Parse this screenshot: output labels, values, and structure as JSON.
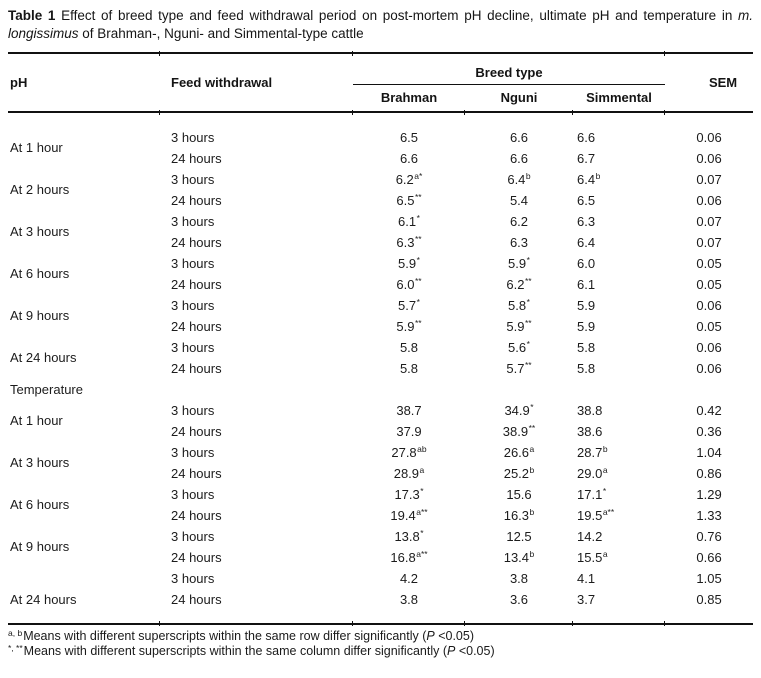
{
  "title": {
    "label_bold": "Table 1",
    "text_after_label": " Effect of breed type and feed withdrawal period on post-mortem pH decline, ultimate pH and temperature in ",
    "italic": "m. longissimus",
    "text_end": " of Brahman-, Nguni- and Simmental-type cattle"
  },
  "header": {
    "ph": "pH",
    "feed_withdrawal": "Feed withdrawal",
    "breed_type": "Breed type",
    "breeds": [
      "Brahman",
      "Nguni",
      "Simmental"
    ],
    "sem": "SEM"
  },
  "body": {
    "sections": [
      {
        "section_label": null,
        "groups": [
          {
            "label": "At 1 hour",
            "rows": [
              [
                "3 hours",
                "6.5",
                "6.6",
                "6.6",
                "0.06"
              ],
              [
                "24 hours",
                "6.6",
                "6.6",
                "6.7",
                "0.06"
              ]
            ]
          },
          {
            "label": "At 2 hours",
            "rows": [
              [
                "3 hours",
                [
                  "6.2",
                  "a*"
                ],
                [
                  "6.4",
                  "b"
                ],
                [
                  "6.4",
                  "b"
                ],
                "0.07"
              ],
              [
                "24 hours",
                [
                  "6.5",
                  "**"
                ],
                "5.4",
                "6.5",
                "0.06"
              ]
            ]
          },
          {
            "label": "At 3 hours",
            "rows": [
              [
                "3 hours",
                [
                  "6.1",
                  "*"
                ],
                "6.2",
                "6.3",
                "0.07"
              ],
              [
                "24 hours",
                [
                  "6.3",
                  "**"
                ],
                "6.3",
                "6.4",
                "0.07"
              ]
            ]
          },
          {
            "label": "At 6 hours",
            "rows": [
              [
                "3 hours",
                [
                  "5.9",
                  "*"
                ],
                [
                  "5.9",
                  "*"
                ],
                "6.0",
                "0.05"
              ],
              [
                "24 hours",
                [
                  "6.0",
                  "**"
                ],
                [
                  "6.2",
                  "**"
                ],
                "6.1",
                "0.05"
              ]
            ]
          },
          {
            "label": "At 9 hours",
            "rows": [
              [
                "3 hours",
                [
                  "5.7",
                  "*"
                ],
                [
                  "5.8",
                  "*"
                ],
                "5.9",
                "0.06"
              ],
              [
                "24 hours",
                [
                  "5.9",
                  "**"
                ],
                [
                  "5.9",
                  "**"
                ],
                "5.9",
                "0.05"
              ]
            ]
          },
          {
            "label": "At 24 hours",
            "rows": [
              [
                "3 hours",
                "5.8",
                [
                  "5.6",
                  "*"
                ],
                "5.8",
                "0.06"
              ],
              [
                "24 hours",
                "5.8",
                [
                  "5.7",
                  "**"
                ],
                "5.8",
                "0.06"
              ]
            ]
          }
        ]
      },
      {
        "section_label": "Temperature",
        "groups": [
          {
            "label": "At 1 hour",
            "rows": [
              [
                "3 hours",
                "38.7",
                [
                  "34.9",
                  "*"
                ],
                "38.8",
                "0.42"
              ],
              [
                "24 hours",
                "37.9",
                [
                  "38.9",
                  "**"
                ],
                "38.6",
                "0.36"
              ]
            ]
          },
          {
            "label": "At 3 hours",
            "rows": [
              [
                "3 hours",
                [
                  "27.8",
                  "ab"
                ],
                [
                  "26.6",
                  "a"
                ],
                [
                  "28.7",
                  "b"
                ],
                "1.04"
              ],
              [
                "24 hours",
                [
                  "28.9",
                  "a"
                ],
                [
                  "25.2",
                  "b"
                ],
                [
                  "29.0",
                  "a"
                ],
                "0.86"
              ]
            ]
          },
          {
            "label": "At 6 hours",
            "rows": [
              [
                "3 hours",
                [
                  "17.3",
                  "*"
                ],
                "15.6",
                [
                  "17.1",
                  "*"
                ],
                "1.29"
              ],
              [
                "24 hours",
                [
                  "19.4",
                  "a**"
                ],
                [
                  "16.3",
                  "b"
                ],
                [
                  "19.5",
                  "a**"
                ],
                "1.33"
              ]
            ]
          },
          {
            "label": "At 9 hours",
            "rows": [
              [
                "3 hours",
                [
                  "13.8",
                  "*"
                ],
                "12.5",
                "14.2",
                "0.76"
              ],
              [
                "24 hours",
                [
                  "16.8",
                  "a**"
                ],
                [
                  "13.4",
                  "b"
                ],
                [
                  "15.5",
                  "a"
                ],
                "0.66"
              ]
            ]
          },
          {
            "label": "At 24 hours",
            "label_placement": "row2",
            "rows": [
              [
                "3 hours",
                "4.2",
                "3.8",
                "4.1",
                "1.05"
              ],
              [
                "24 hours",
                "3.8",
                "3.6",
                "3.7",
                "0.85"
              ]
            ]
          }
        ]
      }
    ]
  },
  "footnotes": [
    {
      "sup": "a, b",
      "text": "Means with different superscripts within the same row differ significantly (",
      "p": "P",
      "end": " <0.05)"
    },
    {
      "sup": "*, **",
      "text": "Means with different superscripts within the same column differ significantly (",
      "p": "P",
      "end": " <0.05)"
    }
  ]
}
